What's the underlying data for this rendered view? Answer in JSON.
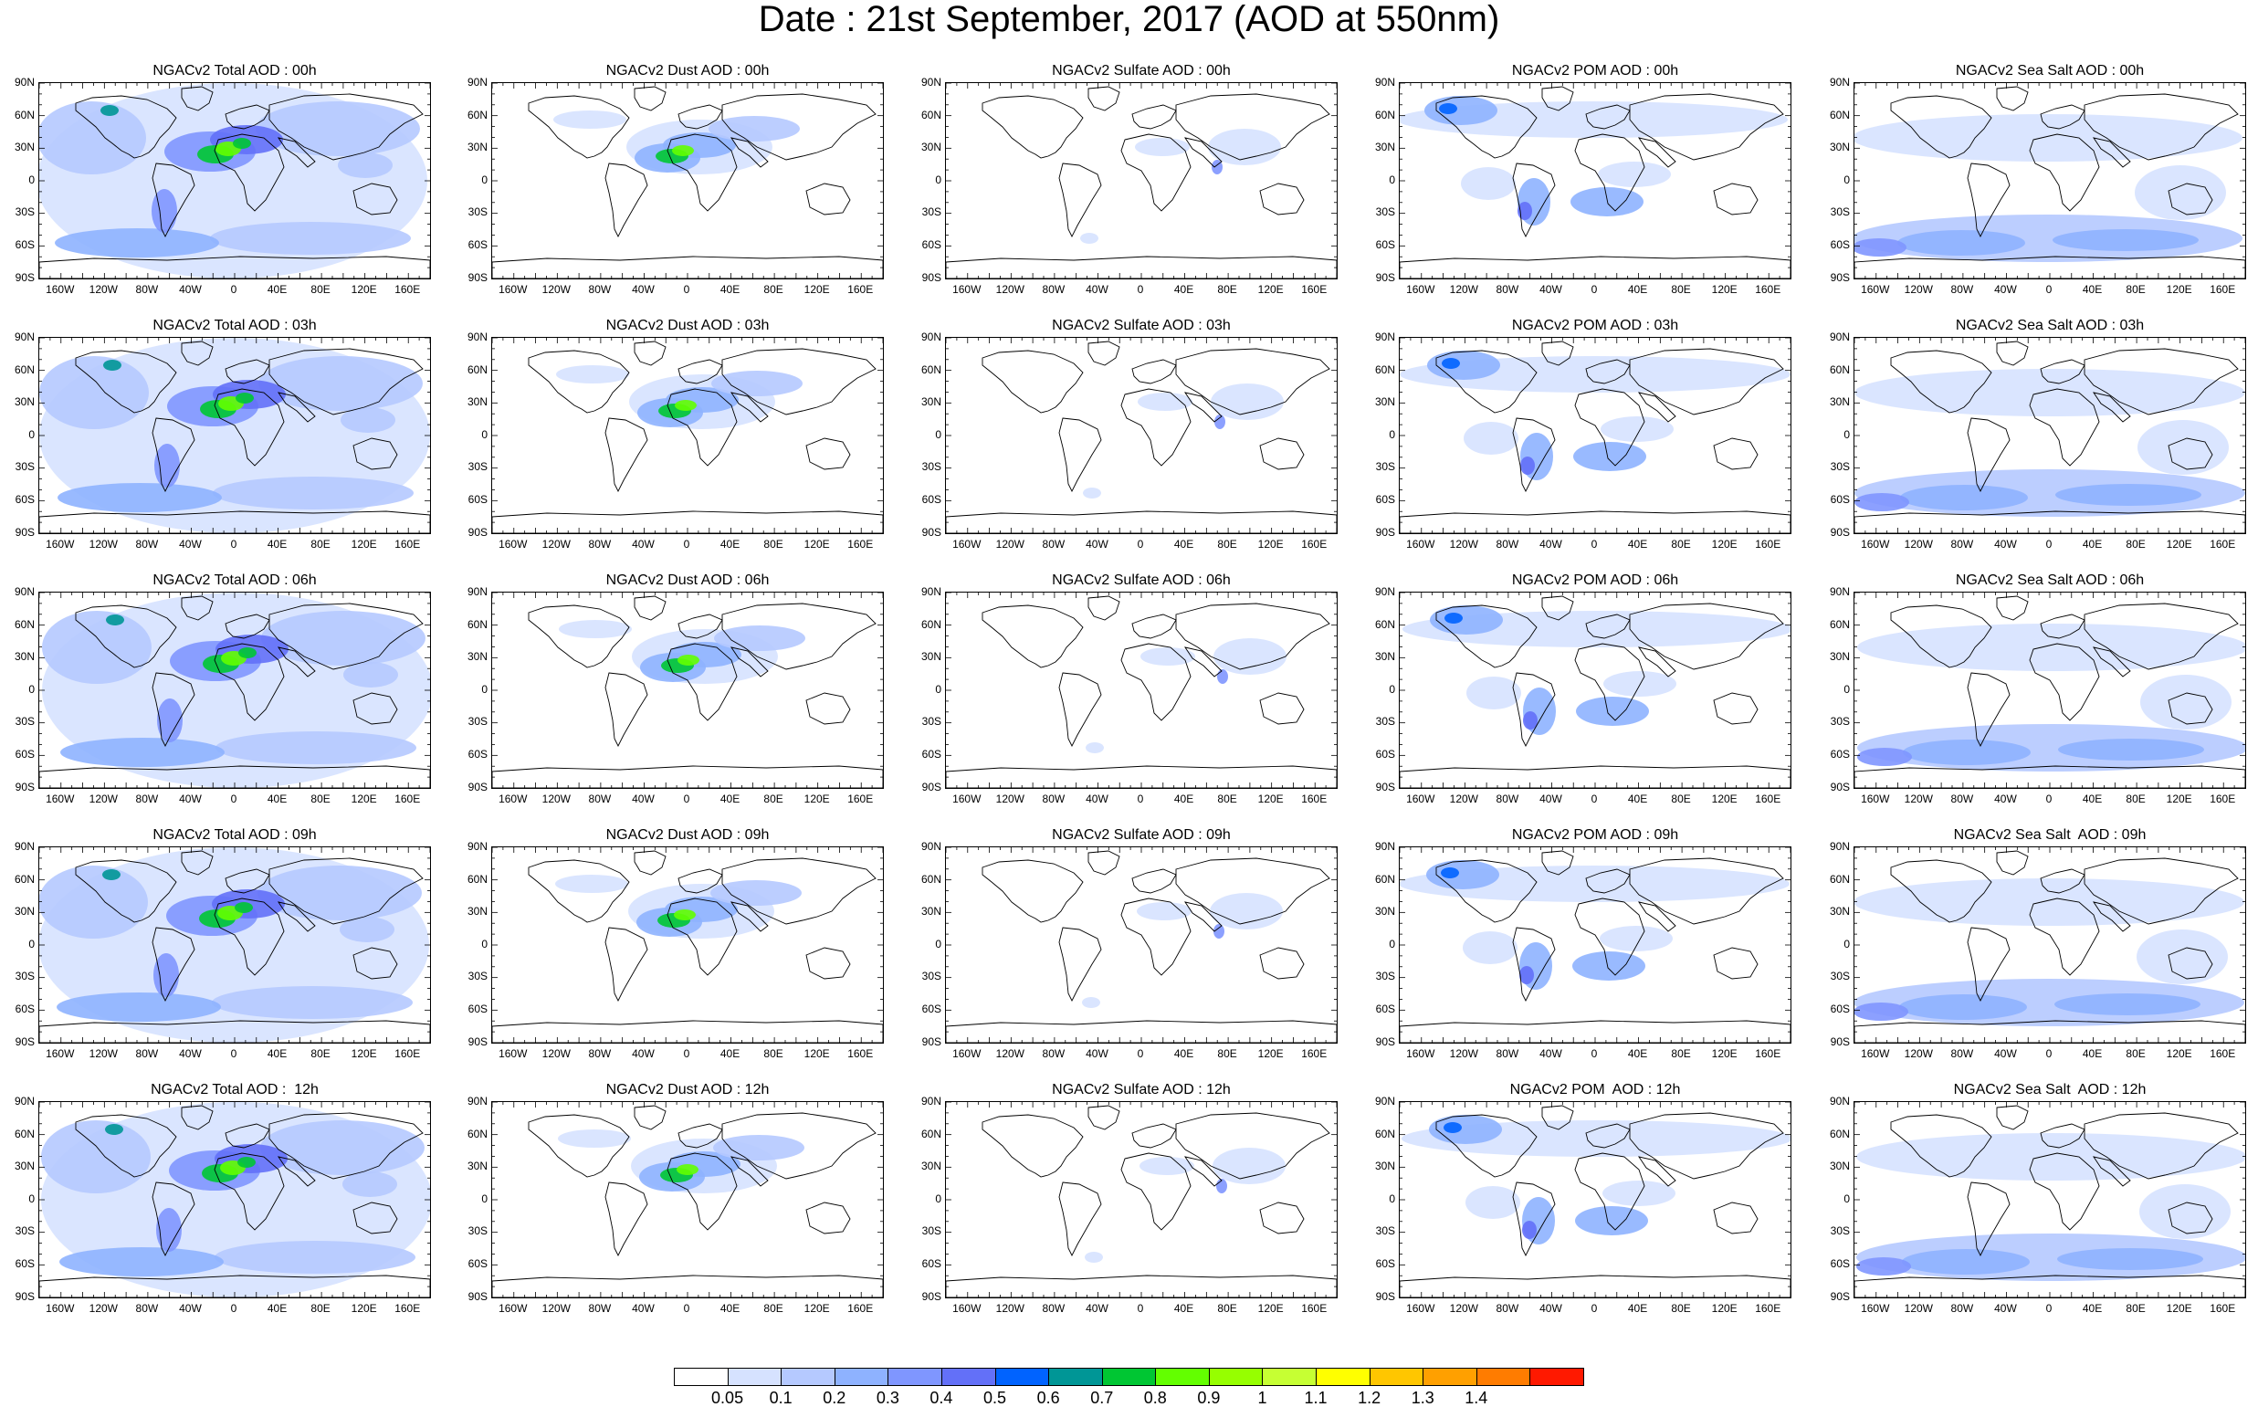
{
  "title": "Date : 21st September, 2017 (AOD at 550nm)",
  "panels": [
    [
      "NGACv2 Total AOD : 00h",
      "NGACv2 Dust AOD : 00h",
      "NGACv2 Sulfate AOD : 00h",
      "NGACv2 POM AOD : 00h",
      "NGACv2 Sea Salt AOD : 00h"
    ],
    [
      "NGACv2 Total AOD : 03h",
      "NGACv2 Dust AOD : 03h",
      "NGACv2 Sulfate AOD : 03h",
      "NGACv2 POM AOD : 03h",
      "NGACv2 Sea Salt AOD : 03h"
    ],
    [
      "NGACv2 Total AOD : 06h",
      "NGACv2 Dust AOD : 06h",
      "NGACv2 Sulfate AOD : 06h",
      "NGACv2 POM AOD : 06h",
      "NGACv2 Sea Salt AOD : 06h"
    ],
    [
      "NGACv2 Total AOD : 09h",
      "NGACv2 Dust AOD : 09h",
      "NGACv2 Sulfate AOD : 09h",
      "NGACv2 POM AOD : 09h",
      "NGACv2 Sea Salt  AOD : 09h"
    ],
    [
      "NGACv2 Total AOD :  12h",
      "NGACv2 Dust AOD : 12h",
      "NGACv2 Sulfate AOD : 12h",
      "NGACv2 POM  AOD : 12h",
      "NGACv2 Sea Salt  AOD : 12h"
    ]
  ],
  "lat_labels": [
    "90N",
    "60N",
    "30N",
    "0",
    "30S",
    "60S",
    "90S"
  ],
  "lon_labels": [
    "160W",
    "120W",
    "80W",
    "40W",
    "0",
    "40E",
    "80E",
    "120E",
    "160E"
  ],
  "colorbar": {
    "labels": [
      "0.05",
      "0.1",
      "0.2",
      "0.3",
      "0.4",
      "0.5",
      "0.6",
      "0.7",
      "0.8",
      "0.9",
      "1",
      "1.1",
      "1.2",
      "1.3",
      "1.4"
    ],
    "colors": [
      "#ffffff",
      "#d6e2ff",
      "#b5c9ff",
      "#8eb2ff",
      "#7f96ff",
      "#6370f8",
      "#0063ff",
      "#009696",
      "#00c633",
      "#63ff00",
      "#96ff00",
      "#c6ff33",
      "#ffff00",
      "#ffc600",
      "#ffa000",
      "#ff7c00",
      "#ff1900"
    ]
  },
  "legend_placement": "bottom"
}
